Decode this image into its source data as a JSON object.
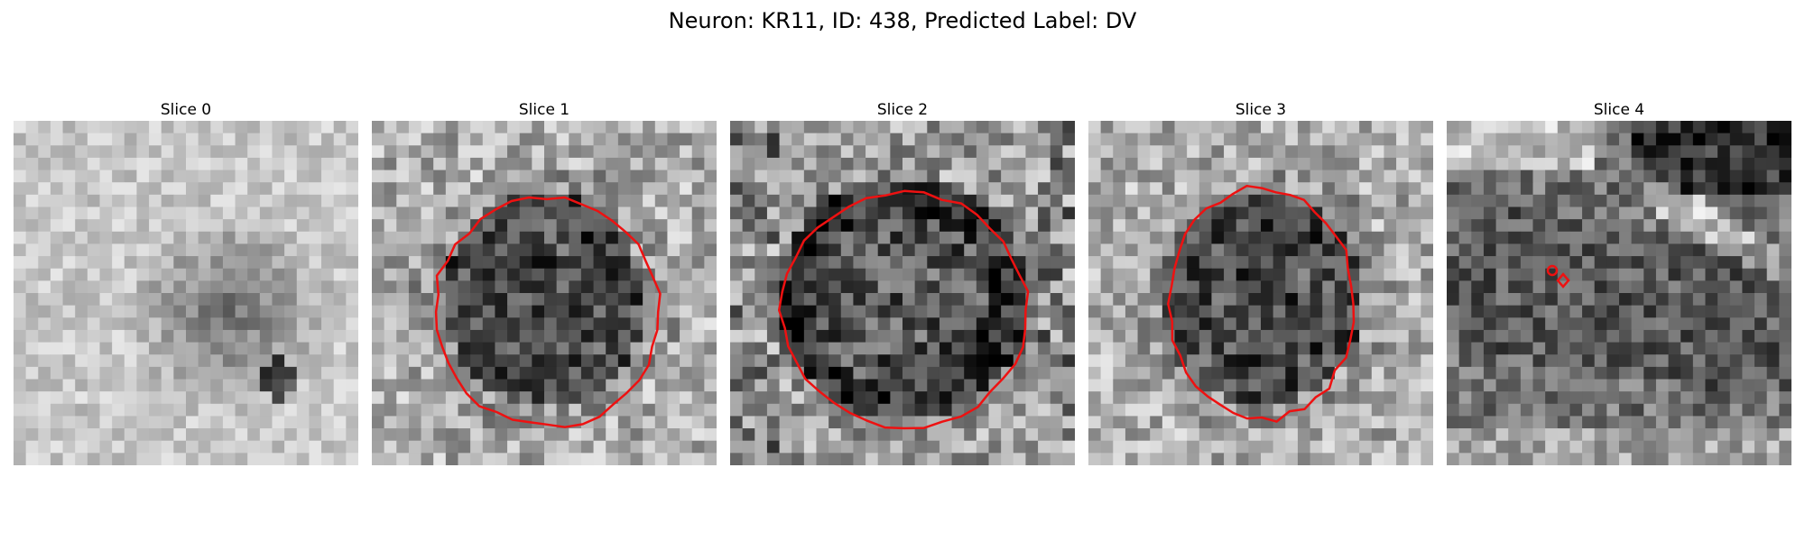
{
  "figure": {
    "title": "Neuron: KR11, ID: 438, Predicted Label: DV"
  },
  "panels": [
    {
      "title": "Slice 0",
      "overlay": "none",
      "pattern": "faint-blob"
    },
    {
      "title": "Slice 1",
      "overlay": "contour",
      "pattern": "soma-dark"
    },
    {
      "title": "Slice 2",
      "overlay": "contour",
      "pattern": "soma-ring"
    },
    {
      "title": "Slice 3",
      "overlay": "contour",
      "pattern": "soma-dark"
    },
    {
      "title": "Slice 4",
      "overlay": "small-markers",
      "pattern": "band"
    }
  ],
  "colors": {
    "contour": "#ee1111",
    "background": "#ffffff"
  },
  "image": {
    "colormap": "gray",
    "grid_size": 28
  }
}
